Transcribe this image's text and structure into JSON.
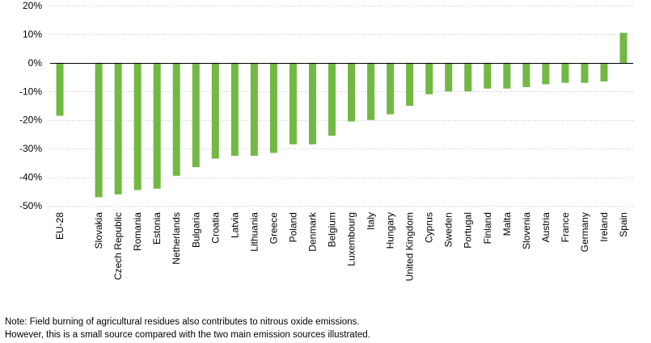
{
  "chart_data": {
    "type": "bar",
    "title": "",
    "xlabel": "",
    "ylabel": "",
    "ylim": [
      -50,
      20
    ],
    "yticks": [
      20,
      10,
      0,
      -10,
      -20,
      -30,
      -40,
      -50
    ],
    "ytick_labels": [
      "20%",
      "10%",
      "0%",
      "-10%",
      "-20%",
      "-30%",
      "-40%",
      "-50%"
    ],
    "grid": true,
    "legend": "none",
    "bar_color": "#72b843",
    "categories": [
      "EU-28",
      "Slovakia",
      "Czech Republic",
      "Romania",
      "Estonia",
      "Netherlands",
      "Bulgaria",
      "Croatia",
      "Latvia",
      "Lithuania",
      "Greece",
      "Poland",
      "Denmark",
      "Belgium",
      "Luxembourg",
      "Italy",
      "Hungary",
      "United Kingdom",
      "Cyprus",
      "Sweden",
      "Portugal",
      "Finland",
      "Malta",
      "Slovenia",
      "Austria",
      "France",
      "Germany",
      "Ireland",
      "Spain"
    ],
    "values": [
      -18.5,
      -47.0,
      -46.0,
      -44.5,
      -44.0,
      -39.5,
      -36.5,
      -33.5,
      -32.5,
      -32.5,
      -31.5,
      -28.5,
      -28.5,
      -25.5,
      -20.5,
      -20.0,
      -18.0,
      -15.0,
      -11.0,
      -10.0,
      -10.0,
      -9.0,
      -9.0,
      -8.5,
      -7.5,
      -7.0,
      -7.0,
      -6.5,
      10.5
    ]
  },
  "notes": [
    "Note: Field burning of agricultural residues also contributes to nitrous oxide emissions.",
    "However, this is a small source compared with the two main emission sources illustrated."
  ]
}
